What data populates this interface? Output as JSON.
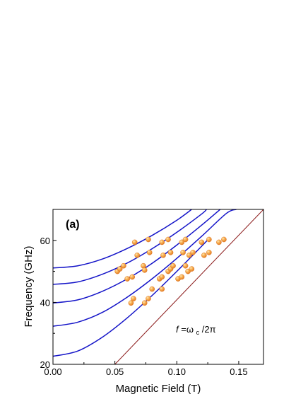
{
  "chart_data": {
    "type": "scatter",
    "panel_label": "(a)",
    "xlabel": "Magnetic Field (T)",
    "ylabel": "Frequency (GHz)",
    "xlim": [
      0.0,
      0.17
    ],
    "ylim": [
      20,
      70
    ],
    "xticks": [
      0.0,
      0.05,
      0.1,
      0.15
    ],
    "xtick_labels": [
      "0.00",
      "0.05",
      "0.10",
      "0.15"
    ],
    "yticks": [
      20,
      40,
      60
    ],
    "ytick_labels": [
      "20",
      "40",
      "60"
    ],
    "grid": false,
    "annotation": {
      "parts": [
        "f",
        "=ω",
        "c",
        "/2π"
      ],
      "x": 0.099,
      "y": 31.2
    },
    "colors": {
      "model_curves": "#1414c8",
      "cyclotron_line": "#8b1a1a",
      "points": "#f08a1e"
    },
    "model_curves": [
      {
        "f0": 22.6,
        "x": [
          0.0,
          0.02,
          0.04,
          0.06,
          0.08,
          0.1,
          0.12,
          0.125
        ],
        "y": [
          22.6,
          24.3,
          28.8,
          35.0,
          42.2,
          50.0,
          58.1,
          60.2
        ]
      },
      {
        "f0": 32.3,
        "x": [
          0.0,
          0.02,
          0.04,
          0.06,
          0.08,
          0.1,
          0.12,
          0.14,
          0.148
        ],
        "y": [
          32.3,
          33.6,
          36.8,
          41.7,
          47.6,
          54.2,
          61.3,
          68.7,
          70.0
        ]
      },
      {
        "f0": 39.8,
        "x": [
          0.0,
          0.02,
          0.04,
          0.06,
          0.08,
          0.1,
          0.12,
          0.135
        ],
        "y": [
          39.8,
          40.8,
          43.6,
          47.6,
          52.6,
          58.5,
          64.9,
          70.0
        ]
      },
      {
        "f0": 45.8,
        "x": [
          0.0,
          0.02,
          0.04,
          0.06,
          0.08,
          0.1,
          0.12,
          0.124
        ],
        "y": [
          45.8,
          46.6,
          49.1,
          52.7,
          57.3,
          62.6,
          68.5,
          70.0
        ]
      },
      {
        "f0": 51.1,
        "x": [
          0.0,
          0.02,
          0.04,
          0.06,
          0.08,
          0.1,
          0.112
        ],
        "y": [
          51.1,
          51.8,
          54.0,
          57.4,
          61.6,
          66.5,
          70.0
        ]
      }
    ],
    "cyclotron_line": {
      "x": [
        0.05,
        0.17
      ],
      "y": [
        20,
        70
      ]
    },
    "points": [
      {
        "x": 0.052,
        "y": 50.0
      },
      {
        "x": 0.054,
        "y": 50.8
      },
      {
        "x": 0.057,
        "y": 51.8
      },
      {
        "x": 0.06,
        "y": 47.6
      },
      {
        "x": 0.064,
        "y": 48.2
      },
      {
        "x": 0.063,
        "y": 39.8
      },
      {
        "x": 0.065,
        "y": 41.2
      },
      {
        "x": 0.066,
        "y": 59.4
      },
      {
        "x": 0.068,
        "y": 55.2
      },
      {
        "x": 0.073,
        "y": 51.8
      },
      {
        "x": 0.074,
        "y": 39.8
      },
      {
        "x": 0.074,
        "y": 50.4
      },
      {
        "x": 0.077,
        "y": 41.2
      },
      {
        "x": 0.077,
        "y": 60.3
      },
      {
        "x": 0.078,
        "y": 56.1
      },
      {
        "x": 0.08,
        "y": 44.3
      },
      {
        "x": 0.086,
        "y": 47.6
      },
      {
        "x": 0.088,
        "y": 48.2
      },
      {
        "x": 0.088,
        "y": 44.3
      },
      {
        "x": 0.088,
        "y": 59.4
      },
      {
        "x": 0.089,
        "y": 55.2
      },
      {
        "x": 0.093,
        "y": 60.3
      },
      {
        "x": 0.093,
        "y": 50.0
      },
      {
        "x": 0.095,
        "y": 50.8
      },
      {
        "x": 0.095,
        "y": 56.1
      },
      {
        "x": 0.097,
        "y": 51.8
      },
      {
        "x": 0.101,
        "y": 47.6
      },
      {
        "x": 0.104,
        "y": 48.2
      },
      {
        "x": 0.104,
        "y": 59.4
      },
      {
        "x": 0.105,
        "y": 56.1
      },
      {
        "x": 0.107,
        "y": 60.3
      },
      {
        "x": 0.107,
        "y": 51.8
      },
      {
        "x": 0.109,
        "y": 50.0
      },
      {
        "x": 0.11,
        "y": 55.2
      },
      {
        "x": 0.112,
        "y": 50.8
      },
      {
        "x": 0.113,
        "y": 56.1
      },
      {
        "x": 0.12,
        "y": 59.4
      },
      {
        "x": 0.122,
        "y": 55.2
      },
      {
        "x": 0.126,
        "y": 60.3
      },
      {
        "x": 0.126,
        "y": 56.1
      },
      {
        "x": 0.134,
        "y": 59.4
      },
      {
        "x": 0.138,
        "y": 60.3
      }
    ]
  }
}
